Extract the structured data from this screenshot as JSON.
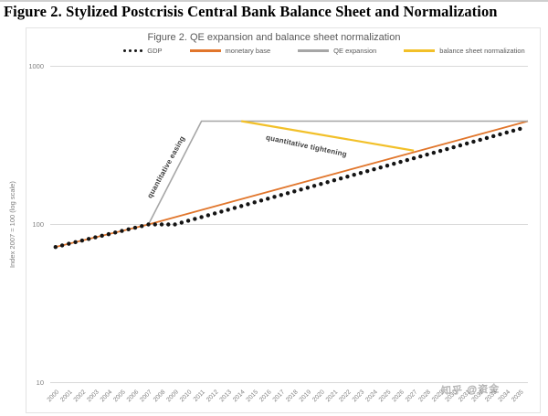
{
  "page": {
    "title": "Figure 2. Stylized Postcrisis Central Bank Balance Sheet and Normalization",
    "watermark": "知乎 @资金"
  },
  "chart_data": {
    "type": "line",
    "title": "Figure 2. QE expansion and balance sheet normalization",
    "legend_position": "top",
    "grid": "horizontal",
    "x_axis": {
      "range": [
        1999.6,
        2035.6
      ],
      "ticks": [
        2000,
        2001,
        2002,
        2003,
        2004,
        2005,
        2006,
        2007,
        2008,
        2009,
        2010,
        2011,
        2012,
        2013,
        2014,
        2015,
        2016,
        2017,
        2018,
        2019,
        2020,
        2021,
        2022,
        2023,
        2024,
        2025,
        2026,
        2027,
        2028,
        2029,
        2030,
        2031,
        2032,
        2033,
        2034,
        2035
      ],
      "tick_rotation": -45
    },
    "y_axis": {
      "label": "Index 2007 = 100 (log scale)",
      "scale": "log",
      "range": [
        10,
        1000
      ],
      "ticks": [
        10,
        100,
        1000
      ]
    },
    "series": [
      {
        "name": "GDP",
        "type": "dots",
        "color": "#141414",
        "x": [
          2000,
          2001,
          2002,
          2003,
          2004,
          2005,
          2006,
          2007,
          2008,
          2009,
          2010,
          2011,
          2012,
          2013,
          2014,
          2015,
          2016,
          2017,
          2018,
          2019,
          2020,
          2021,
          2022,
          2023,
          2024,
          2025,
          2026,
          2027,
          2028,
          2029,
          2030,
          2031,
          2032,
          2033,
          2034,
          2035
        ],
        "values": [
          72,
          75.5,
          79.1,
          82.9,
          86.8,
          91,
          95.4,
          100,
          100,
          100,
          105.5,
          111.3,
          117.4,
          123.9,
          130.7,
          137.9,
          145.5,
          153.5,
          161.9,
          170.8,
          180.2,
          190.1,
          200.6,
          211.6,
          223.2,
          235.5,
          248.5,
          262.2,
          276.6,
          291.8,
          307.8,
          324.8,
          342.6,
          361.5,
          381.3,
          402.3
        ]
      },
      {
        "name": "monetary base",
        "type": "line",
        "color": "#e1762c",
        "width": 1.8,
        "points": [
          [
            2000,
            72
          ],
          [
            2007,
            100
          ],
          [
            2035.6,
            450
          ]
        ]
      },
      {
        "name": "QE expansion",
        "type": "line",
        "color": "#a6a6a6",
        "width": 1.6,
        "points": [
          [
            2007,
            100
          ],
          [
            2011,
            450
          ],
          [
            2035.6,
            450
          ]
        ]
      },
      {
        "name": "balance sheet normalization",
        "type": "line",
        "color": "#f2c029",
        "width": 2.2,
        "points": [
          [
            2014,
            450
          ],
          [
            2027,
            293
          ]
        ]
      }
    ],
    "annotations": [
      {
        "text": "quantitative easing",
        "x": 184,
        "y": 184,
        "rotate": -61
      },
      {
        "text": "quantitative tightening",
        "x": 335,
        "y": 162,
        "rotate": 12
      }
    ]
  }
}
